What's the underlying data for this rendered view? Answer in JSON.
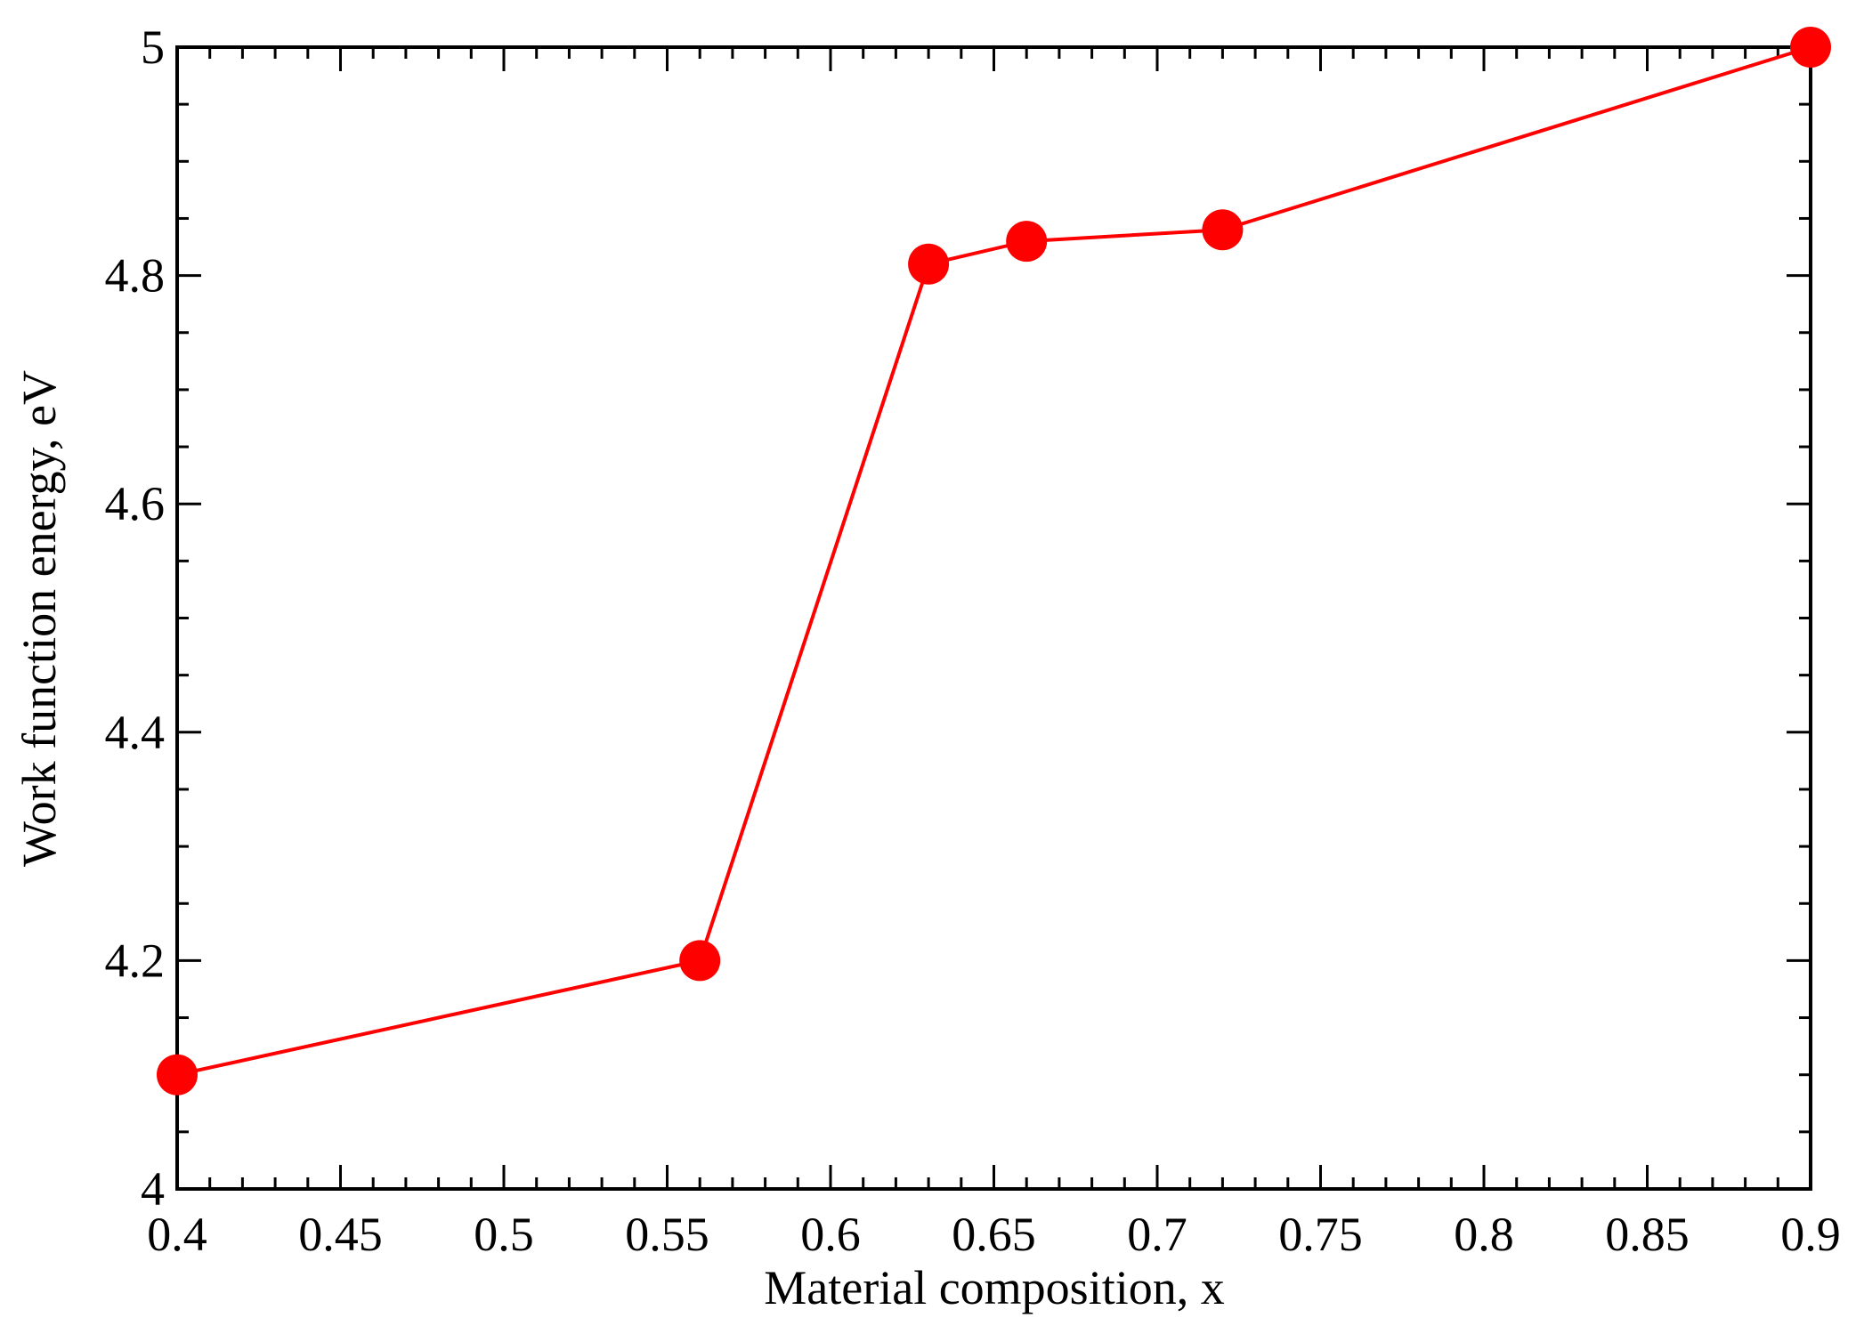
{
  "chart_data": {
    "type": "line",
    "x_label": "Material composition, x",
    "y_label": "Work function energy, eV",
    "series": [
      {
        "color": "#ff0000",
        "x": [
          0.4,
          0.56,
          0.63,
          0.66,
          0.72,
          0.9
        ],
        "values": [
          4.1,
          4.2,
          4.81,
          4.83,
          4.84,
          5.0
        ]
      }
    ],
    "xlim": [
      0.4,
      0.9
    ],
    "ylim": [
      4,
      5
    ],
    "xticks": [
      0.4,
      0.45,
      0.5,
      0.55,
      0.6,
      0.65,
      0.7,
      0.75,
      0.8,
      0.85,
      0.9
    ],
    "yticks": [
      4,
      4.2,
      4.4,
      4.6,
      4.8,
      5
    ],
    "xminorticks": [
      0.41,
      0.42,
      0.43,
      0.44,
      0.46,
      0.47,
      0.48,
      0.49,
      0.51,
      0.52,
      0.53,
      0.54,
      0.56,
      0.57,
      0.58,
      0.59,
      0.61,
      0.62,
      0.63,
      0.64,
      0.66,
      0.67,
      0.68,
      0.69,
      0.71,
      0.72,
      0.73,
      0.74,
      0.76,
      0.77,
      0.78,
      0.79,
      0.81,
      0.82,
      0.83,
      0.84,
      0.86,
      0.87,
      0.88,
      0.89
    ],
    "yminorticks": [
      4.05,
      4.1,
      4.15,
      4.25,
      4.3,
      4.35,
      4.45,
      4.5,
      4.55,
      4.65,
      4.7,
      4.75,
      4.85,
      4.9,
      4.95
    ],
    "grid": false
  }
}
